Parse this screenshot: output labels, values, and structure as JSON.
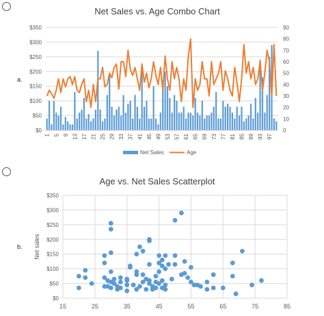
{
  "options": [
    {
      "label": "a."
    },
    {
      "label": "b."
    }
  ],
  "chart_data": [
    {
      "type": "combo",
      "title": "Net Sales vs. Age Combo Chart",
      "primary_axis": {
        "ticks": [
          "$0",
          "$50",
          "$100",
          "$150",
          "$200",
          "$250",
          "$300",
          "$350"
        ],
        "range": [
          0,
          350
        ]
      },
      "secondary_axis": {
        "ticks": [
          "0",
          "10",
          "20",
          "30",
          "40",
          "50",
          "60",
          "70",
          "80",
          "90"
        ],
        "range": [
          0,
          90
        ]
      },
      "x_tick_labels": [
        "1",
        "5",
        "9",
        "13",
        "17",
        "21",
        "25",
        "29",
        "33",
        "37",
        "41",
        "45",
        "49",
        "53",
        "57",
        "61",
        "65",
        "69",
        "73",
        "77",
        "81",
        "85",
        "89",
        "93",
        "97"
      ],
      "grid": true,
      "legend_position": "bottom",
      "series": [
        {
          "name": "Net Sales",
          "kind": "bar",
          "color": "#5b9bd5",
          "values": [
            40,
            100,
            20,
            100,
            60,
            50,
            80,
            20,
            45,
            30,
            20,
            20,
            130,
            40,
            60,
            70,
            110,
            40,
            55,
            30,
            40,
            70,
            270,
            70,
            30,
            40,
            120,
            190,
            80,
            50,
            70,
            80,
            50,
            120,
            60,
            90,
            100,
            40,
            120,
            80,
            40,
            200,
            80,
            100,
            40,
            40,
            150,
            40,
            20,
            60,
            170,
            200,
            150,
            110,
            60,
            120,
            100,
            60,
            60,
            80,
            40,
            60,
            60,
            50,
            110,
            60,
            50,
            100,
            40,
            50,
            50,
            60,
            80,
            130,
            40,
            40,
            100,
            80,
            90,
            80,
            60,
            40,
            80,
            50,
            80,
            30,
            40,
            50,
            90,
            40,
            110,
            60,
            240,
            180,
            60,
            120,
            250,
            290,
            40,
            30
          ]
        },
        {
          "name": "Age",
          "kind": "line",
          "color": "#ed7d31",
          "values": [
            30,
            35,
            32,
            28,
            35,
            45,
            33,
            45,
            38,
            45,
            47,
            40,
            47,
            35,
            33,
            40,
            45,
            25,
            35,
            20,
            40,
            25,
            45,
            45,
            55,
            38,
            40,
            50,
            46,
            55,
            58,
            36,
            60,
            60,
            47,
            70,
            53,
            48,
            55,
            45,
            35,
            58,
            42,
            50,
            37,
            45,
            60,
            48,
            40,
            55,
            35,
            65,
            45,
            35,
            60,
            45,
            55,
            45,
            25,
            45,
            35,
            65,
            80,
            20,
            45,
            35,
            40,
            60,
            45,
            45,
            30,
            60,
            40,
            45,
            50,
            60,
            35,
            52,
            45,
            35,
            30,
            55,
            42,
            25,
            45,
            75,
            50,
            60,
            45,
            55,
            40,
            45,
            60,
            35,
            50,
            70,
            60,
            30,
            75,
            30
          ]
        }
      ]
    },
    {
      "type": "scatter",
      "title": "Age vs. Net Sales Scatterplot",
      "ylabel": "Net sales",
      "xlim": [
        15,
        85
      ],
      "ylim": [
        0,
        350
      ],
      "x_ticks": [
        15,
        25,
        35,
        45,
        55,
        65,
        75,
        85
      ],
      "y_ticks": [
        "$0",
        "$50",
        "$100",
        "$150",
        "$200",
        "$250",
        "$300",
        "$350"
      ],
      "grid": true,
      "color": "#5b9bd5",
      "points": [
        [
          20,
          35
        ],
        [
          20,
          75
        ],
        [
          22,
          95
        ],
        [
          22,
          70
        ],
        [
          24,
          50
        ],
        [
          28,
          40
        ],
        [
          28,
          70
        ],
        [
          28,
          120
        ],
        [
          28,
          145
        ],
        [
          29,
          40
        ],
        [
          29,
          60
        ],
        [
          30,
          35
        ],
        [
          30,
          55
        ],
        [
          30,
          90
        ],
        [
          30,
          155
        ],
        [
          30,
          235
        ],
        [
          30,
          255
        ],
        [
          31,
          50
        ],
        [
          31,
          65
        ],
        [
          32,
          30
        ],
        [
          32,
          40
        ],
        [
          33,
          35
        ],
        [
          33,
          55
        ],
        [
          33,
          70
        ],
        [
          35,
          25
        ],
        [
          35,
          45
        ],
        [
          35,
          60
        ],
        [
          35,
          65
        ],
        [
          36,
          105
        ],
        [
          36,
          110
        ],
        [
          37,
          45
        ],
        [
          38,
          30
        ],
        [
          38,
          80
        ],
        [
          38,
          90
        ],
        [
          38,
          150
        ],
        [
          39,
          40
        ],
        [
          39,
          175
        ],
        [
          40,
          55
        ],
        [
          40,
          80
        ],
        [
          40,
          160
        ],
        [
          41,
          30
        ],
        [
          41,
          65
        ],
        [
          42,
          50
        ],
        [
          42,
          60
        ],
        [
          42,
          115
        ],
        [
          42,
          195
        ],
        [
          42,
          200
        ],
        [
          43,
          30
        ],
        [
          43,
          40
        ],
        [
          44,
          35
        ],
        [
          44,
          55
        ],
        [
          44,
          75
        ],
        [
          45,
          50
        ],
        [
          45,
          90
        ],
        [
          45,
          120
        ],
        [
          45,
          145
        ],
        [
          46,
          35
        ],
        [
          46,
          60
        ],
        [
          46,
          110
        ],
        [
          46,
          130
        ],
        [
          47,
          30
        ],
        [
          47,
          45
        ],
        [
          47,
          100
        ],
        [
          47,
          145
        ],
        [
          48,
          115
        ],
        [
          49,
          65
        ],
        [
          50,
          115
        ],
        [
          50,
          265
        ],
        [
          50,
          145
        ],
        [
          52,
          290
        ],
        [
          52,
          80
        ],
        [
          53,
          125
        ],
        [
          53,
          85
        ],
        [
          54,
          70
        ],
        [
          55,
          55
        ],
        [
          55,
          105
        ],
        [
          56,
          45
        ],
        [
          57,
          45
        ],
        [
          58,
          40
        ],
        [
          60,
          55
        ],
        [
          60,
          30
        ],
        [
          62,
          35
        ],
        [
          62,
          80
        ],
        [
          65,
          35
        ],
        [
          68,
          75
        ],
        [
          68,
          120
        ],
        [
          69,
          15
        ],
        [
          71,
          160
        ],
        [
          74,
          45
        ],
        [
          77,
          60
        ]
      ]
    }
  ]
}
